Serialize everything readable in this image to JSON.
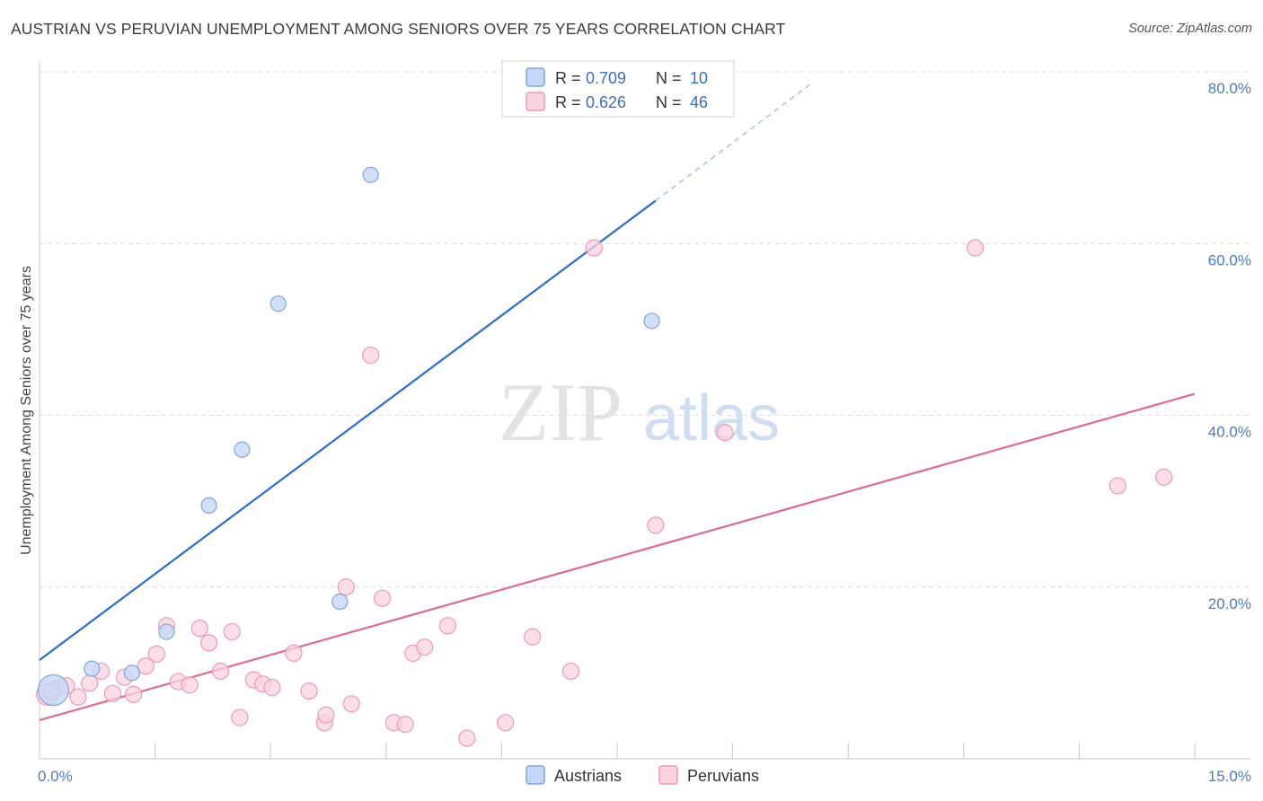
{
  "title": "AUSTRIAN VS PERUVIAN UNEMPLOYMENT AMONG SENIORS OVER 75 YEARS CORRELATION CHART",
  "source": "Source: ZipAtlas.com",
  "watermark": {
    "zip": "ZIP",
    "atlas": "atlas"
  },
  "colors": {
    "austrians_fill": "#c5d8f5",
    "austrians_stroke": "#7fa6de",
    "austrians_line": "#2a6dd0",
    "peruvians_fill": "#fbd3df",
    "peruvians_stroke": "#ef9ab5",
    "peruvians_line": "#e06a92",
    "grid": "#dcdcdc",
    "tick_label": "#4a7cc9"
  },
  "legend": {
    "rows": [
      {
        "r_label": "R = ",
        "r_value": "0.709",
        "n_label": "N = ",
        "n_value": "10"
      },
      {
        "r_label": "R = ",
        "r_value": "0.626",
        "n_label": "N = ",
        "n_value": "46"
      }
    ]
  },
  "chart_data": {
    "type": "scatter",
    "title": "AUSTRIAN VS PERUVIAN UNEMPLOYMENT AMONG SENIORS OVER 75 YEARS CORRELATION CHART",
    "xlabel": "",
    "ylabel": "Unemployment Among Seniors over 75 years",
    "xlim": [
      0,
      15
    ],
    "ylim": [
      0,
      80
    ],
    "x_tick_labels": [
      "0.0%",
      "15.0%"
    ],
    "y_ticks": [
      20,
      40,
      60,
      80
    ],
    "y_tick_labels": [
      "20.0%",
      "40.0%",
      "60.0%",
      "80.0%"
    ],
    "grid": true,
    "legend_position": "top-center",
    "series": [
      {
        "name": "Austrians",
        "r": 0.709,
        "n": 10,
        "points": [
          {
            "x": 0.18,
            "y": 8.0
          },
          {
            "x": 0.68,
            "y": 10.5
          },
          {
            "x": 1.2,
            "y": 10.0
          },
          {
            "x": 1.65,
            "y": 14.8
          },
          {
            "x": 2.2,
            "y": 29.5
          },
          {
            "x": 2.63,
            "y": 36.0
          },
          {
            "x": 3.1,
            "y": 53.0
          },
          {
            "x": 3.9,
            "y": 18.3
          },
          {
            "x": 4.3,
            "y": 68.0
          },
          {
            "x": 7.95,
            "y": 51.0
          }
        ],
        "trend": {
          "x0": 0.0,
          "y0": 11.5,
          "x1": 8.0,
          "y1": 65.0,
          "dash_x1": 10.0,
          "dash_y1": 78.5
        }
      },
      {
        "name": "Peruvians",
        "r": 0.626,
        "n": 46,
        "points": [
          {
            "x": 0.1,
            "y": 7.5
          },
          {
            "x": 0.22,
            "y": 8.2
          },
          {
            "x": 0.35,
            "y": 8.5
          },
          {
            "x": 0.5,
            "y": 7.2
          },
          {
            "x": 0.65,
            "y": 8.8
          },
          {
            "x": 0.8,
            "y": 10.2
          },
          {
            "x": 0.95,
            "y": 7.6
          },
          {
            "x": 1.1,
            "y": 9.5
          },
          {
            "x": 1.22,
            "y": 7.5
          },
          {
            "x": 1.38,
            "y": 10.8
          },
          {
            "x": 1.52,
            "y": 12.2
          },
          {
            "x": 1.65,
            "y": 15.5
          },
          {
            "x": 1.8,
            "y": 9.0
          },
          {
            "x": 1.95,
            "y": 8.6
          },
          {
            "x": 2.08,
            "y": 15.2
          },
          {
            "x": 2.2,
            "y": 13.5
          },
          {
            "x": 2.35,
            "y": 10.2
          },
          {
            "x": 2.5,
            "y": 14.8
          },
          {
            "x": 2.6,
            "y": 4.8
          },
          {
            "x": 2.78,
            "y": 9.2
          },
          {
            "x": 2.9,
            "y": 8.7
          },
          {
            "x": 3.02,
            "y": 8.3
          },
          {
            "x": 3.3,
            "y": 12.3
          },
          {
            "x": 3.5,
            "y": 7.9
          },
          {
            "x": 3.7,
            "y": 4.2
          },
          {
            "x": 3.72,
            "y": 5.1
          },
          {
            "x": 3.98,
            "y": 20.0
          },
          {
            "x": 4.05,
            "y": 6.4
          },
          {
            "x": 4.3,
            "y": 47.0
          },
          {
            "x": 4.45,
            "y": 18.7
          },
          {
            "x": 4.6,
            "y": 4.2
          },
          {
            "x": 4.75,
            "y": 4.0
          },
          {
            "x": 4.85,
            "y": 12.3
          },
          {
            "x": 5.0,
            "y": 13.0
          },
          {
            "x": 5.3,
            "y": 15.5
          },
          {
            "x": 5.55,
            "y": 2.4
          },
          {
            "x": 6.05,
            "y": 4.2
          },
          {
            "x": 6.4,
            "y": 14.2
          },
          {
            "x": 6.9,
            "y": 10.2
          },
          {
            "x": 7.2,
            "y": 59.5
          },
          {
            "x": 8.0,
            "y": 27.2
          },
          {
            "x": 8.9,
            "y": 38.0
          },
          {
            "x": 12.15,
            "y": 59.5
          },
          {
            "x": 14.0,
            "y": 31.8
          },
          {
            "x": 14.6,
            "y": 32.8
          },
          {
            "x": 0.15,
            "y": 7.8
          }
        ],
        "trend": {
          "x0": 0.0,
          "y0": 4.5,
          "x1": 15.0,
          "y1": 42.5
        }
      }
    ]
  }
}
